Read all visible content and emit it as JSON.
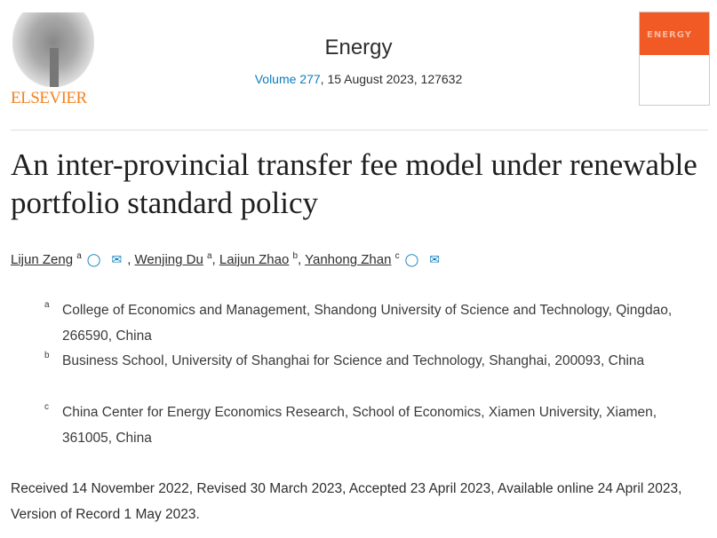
{
  "publisher": {
    "logo_text": "ELSEVIER"
  },
  "journal": {
    "title": "Energy",
    "volume_link": "Volume 277",
    "issue_rest": ", 15 August 2023, 127632",
    "cover_word": "ENERGY"
  },
  "article": {
    "title": "An inter-provincial transfer fee model under renewable portfolio standard policy"
  },
  "authors": [
    {
      "name": "Lijun Zeng",
      "sup": "a",
      "icons": [
        "person-icon",
        "mail-icon"
      ]
    },
    {
      "name": "Wenjing Du",
      "sup": "a"
    },
    {
      "name": "Laijun Zhao",
      "sup": "b"
    },
    {
      "name": "Yanhong Zhan",
      "sup": "c",
      "icons": [
        "person-icon",
        "mail-icon"
      ]
    }
  ],
  "affiliations": [
    {
      "label": "a",
      "text": "College of Economics and Management, Shandong University of Science and Technology, Qingdao, 266590, China"
    },
    {
      "label": "b",
      "text": "Business School, University of Shanghai for Science and Technology, Shanghai, 200093, China"
    },
    {
      "label": "c",
      "text": "China Center for Energy Economics Research, School of Economics, Xiamen University, Xiamen, 361005, China"
    }
  ],
  "dates": "Received 14 November 2022, Revised 30 March 2023, Accepted 23 April 2023, Available online 24 April 2023, Version of Record 1 May 2023.",
  "colors": {
    "link": "#0c7dbb",
    "elsevier": "#f5821f",
    "cover": "#f15a24"
  }
}
